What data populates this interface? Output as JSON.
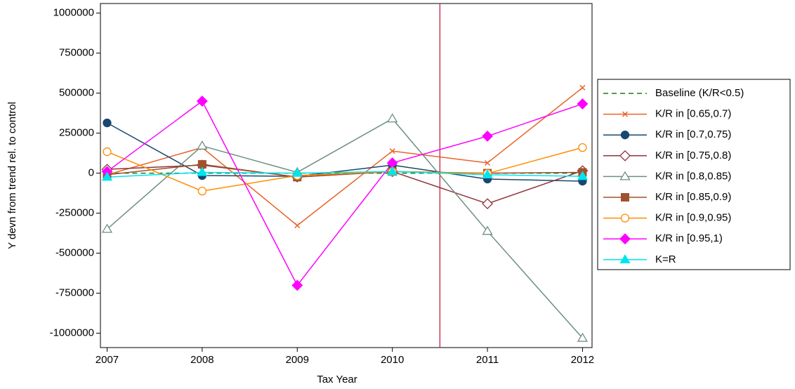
{
  "chart_data": {
    "type": "line",
    "x_label": "Tax Year",
    "y_label": "Y devn from trend rel. to control",
    "x": [
      2007,
      2008,
      2009,
      2010,
      2011,
      2012
    ],
    "xlim": [
      2006.93,
      2012.1
    ],
    "xticks": [
      2007,
      2008,
      2009,
      2010,
      2011,
      2012
    ],
    "ylim": [
      -1090000,
      1060000
    ],
    "yticks": [
      -1000000,
      -750000,
      -500000,
      -250000,
      0,
      250000,
      500000,
      750000,
      1000000
    ],
    "vline": 2010.5,
    "vline_color": "#c8385a",
    "legend": "right",
    "series": [
      {
        "name": "Baseline (K/R<0.5)",
        "color": "#1a7a1a",
        "line_style": "dashed",
        "marker": "none",
        "values": [
          0,
          0,
          0,
          0,
          0,
          0
        ]
      },
      {
        "name": "K/R in [0.65,0.7)",
        "color": "#e8632b",
        "marker": "x",
        "values": [
          -10000,
          160000,
          -327000,
          138000,
          64000,
          534000
        ]
      },
      {
        "name": "K/R in [0.7,0.75)",
        "color": "#1a476f",
        "marker": "circle",
        "values": [
          314000,
          -15000,
          -20000,
          50000,
          -37000,
          -50000
        ]
      },
      {
        "name": "K/R in [0.75,0.8)",
        "color": "#90353b",
        "marker": "diamond-open",
        "values": [
          24000,
          50000,
          -24000,
          10000,
          -191000,
          15000
        ]
      },
      {
        "name": "K/R in [0.8,0.85)",
        "color": "#6e8e84",
        "marker": "triangle-open",
        "values": [
          -350000,
          170000,
          5000,
          340000,
          -363000,
          -1031000
        ]
      },
      {
        "name": "K/R in [0.85,0.9)",
        "color": "#a0522d",
        "marker": "square",
        "values": [
          -10000,
          55000,
          -25000,
          10000,
          0,
          5000
        ]
      },
      {
        "name": "K/R in [0.9,0.95)",
        "color": "#ff8c00",
        "marker": "circle-open",
        "values": [
          134000,
          -112000,
          -15000,
          10000,
          -2000,
          160000
        ]
      },
      {
        "name": "K/R in [0.95,1)",
        "color": "#ff00ff",
        "marker": "diamond",
        "values": [
          10000,
          450000,
          -701000,
          64000,
          231000,
          433000
        ]
      },
      {
        "name": "K=R",
        "color": "#00e5ee",
        "marker": "triangle",
        "values": [
          -25000,
          5000,
          0,
          10000,
          -10000,
          -20000
        ]
      }
    ]
  }
}
